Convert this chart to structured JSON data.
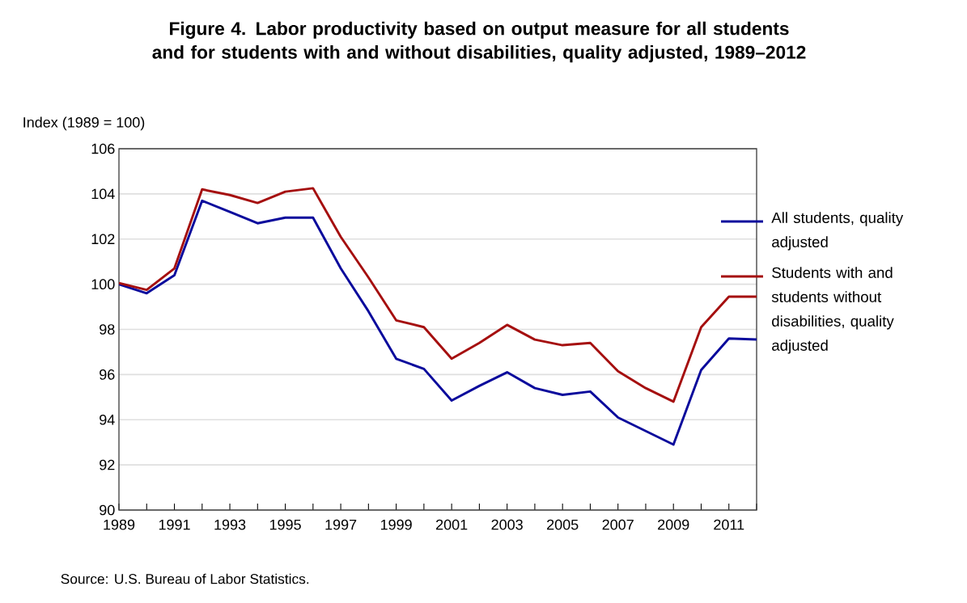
{
  "chart_data": {
    "type": "line",
    "title": "Figure 4. Labor productivity based on output measure for all students and for students with and without disabilities, quality adjusted, 1989–2012",
    "ylabel": "Index (1989 = 100)",
    "annotations": [
      "Source: U.S. Bureau of Labor Statistics."
    ],
    "x": [
      1989,
      1990,
      1991,
      1992,
      1993,
      1994,
      1995,
      1996,
      1997,
      1998,
      1999,
      2000,
      2001,
      2002,
      2003,
      2004,
      2005,
      2006,
      2007,
      2008,
      2009,
      2010,
      2011,
      2012
    ],
    "series": [
      {
        "name": "All students, quality adjusted",
        "color": "#0a0a9c",
        "values": [
          100,
          99.6,
          100.4,
          103.7,
          103.2,
          102.7,
          102.95,
          102.95,
          100.7,
          98.8,
          96.7,
          96.25,
          94.85,
          95.5,
          96.1,
          95.4,
          95.1,
          95.25,
          94.1,
          93.5,
          92.9,
          96.2,
          97.6,
          97.55
        ]
      },
      {
        "name": "Students with and students without disabilities, quality adjusted",
        "color": "#a50f0f",
        "values": [
          100.05,
          99.75,
          100.7,
          104.2,
          103.95,
          103.6,
          104.1,
          104.25,
          102.1,
          100.3,
          98.4,
          98.1,
          96.7,
          97.4,
          98.2,
          97.55,
          97.3,
          97.4,
          96.15,
          95.4,
          94.8,
          98.1,
          99.45,
          99.45
        ]
      }
    ],
    "xlim": [
      1989,
      2012
    ],
    "xticks": [
      1989,
      {
        "value": 1990,
        "label": null
      },
      1991,
      {
        "value": 1992,
        "label": null
      },
      1993,
      {
        "value": 1994,
        "label": null
      },
      1995,
      {
        "value": 1996,
        "label": null
      },
      1997,
      {
        "value": 1998,
        "label": null
      },
      1999,
      {
        "value": 2000,
        "label": null
      },
      2001,
      {
        "value": 2002,
        "label": null
      },
      2003,
      {
        "value": 2004,
        "label": null
      },
      2005,
      {
        "value": 2006,
        "label": null
      },
      2007,
      {
        "value": 2008,
        "label": null
      },
      2009,
      {
        "value": 2010,
        "label": null
      },
      2011,
      {
        "value": 2012,
        "label": null
      }
    ],
    "ylim": [
      90,
      106
    ],
    "yticks": [
      90,
      92,
      94,
      96,
      98,
      100,
      102,
      104,
      106
    ],
    "grid": "y",
    "legend": "right",
    "marker": "none",
    "line_style": "solid"
  }
}
